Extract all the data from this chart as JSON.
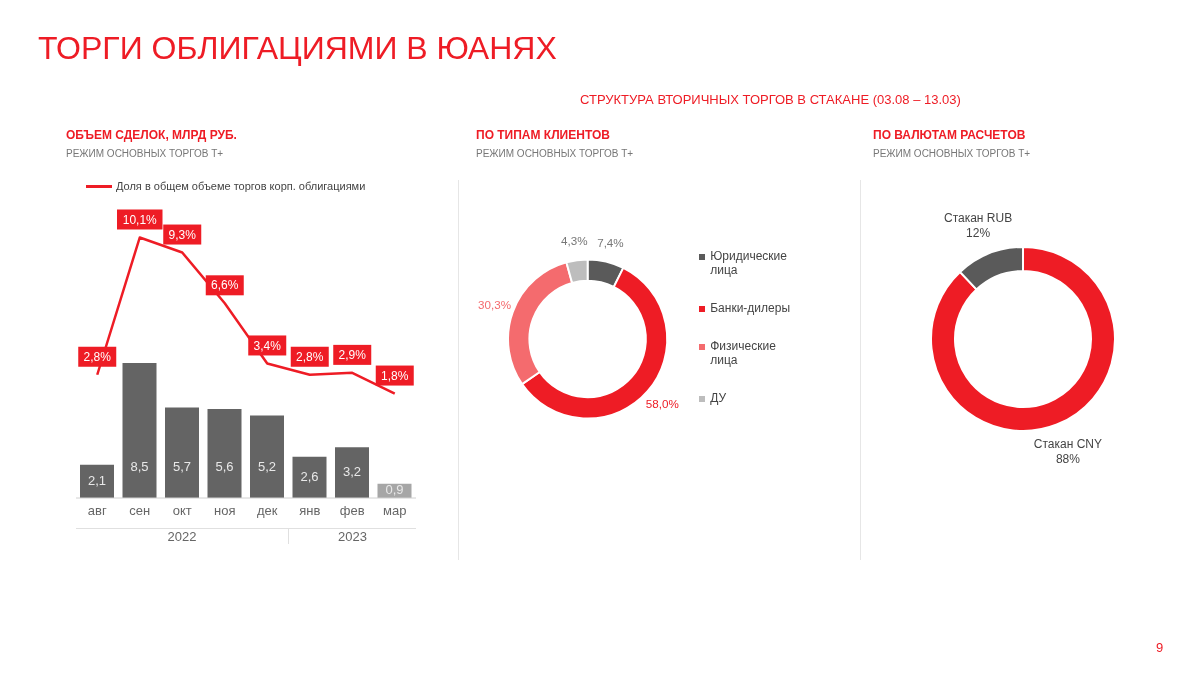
{
  "chart_data": [
    {
      "type": "bar",
      "title": "ОБЪЕМ СДЕЛОК, МЛРД РУБ.",
      "subtitle": "РЕЖИМ ОСНОВНЫХ ТОРГОВ Т+",
      "annotations": [
        "ТОРГИ ОБЛИГАЦИЯМИ В ЮАНЯХ",
        "2022",
        "2023"
      ],
      "categories": [
        "авг",
        "сен",
        "окт",
        "ноя",
        "дек",
        "янв",
        "фев",
        "мар"
      ],
      "tick_labels": "x",
      "legend": "top",
      "grid": false,
      "series": [
        {
          "type": "bar",
          "color": "#646464",
          "colors": [
            "#646464",
            "#646464",
            "#646464",
            "#646464",
            "#646464",
            "#646464",
            "#646464",
            "#a6a6a6"
          ],
          "values": [
            2.1,
            8.5,
            5.7,
            5.6,
            5.2,
            2.6,
            3.2,
            0.9
          ],
          "value_labels": [
            "2,1",
            "8,5",
            "5,7",
            "5,6",
            "5,2",
            "2,6",
            "3,2",
            "0,9"
          ]
        },
        {
          "type": "line",
          "name": "Доля в общем объеме торгов корп. облигациями",
          "axis": "y2",
          "color": "#ee1c25",
          "line_style": "solid",
          "values": [
            2.8,
            10.1,
            9.3,
            6.6,
            3.4,
            2.8,
            2.9,
            1.8
          ],
          "value_labels": [
            "2,8%",
            "10,1%",
            "9,3%",
            "6,6%",
            "3,4%",
            "2,8%",
            "2,9%",
            "1,8%"
          ]
        }
      ]
    },
    {
      "type": "donut",
      "title": "ПО ТИПАМ КЛИЕНТОВ",
      "subtitle": "РЕЖИМ ОСНОВНЫХ ТОРГОВ Т+",
      "annotations": [
        "СТРУКТУРА ВТОРИЧНЫХ ТОРГОВ В СТАКАНЕ (03.08 – 13.03)"
      ],
      "legend": "right",
      "categories": [
        "Юридические лица",
        "Банки-дилеры",
        "Физические лица",
        "ДУ"
      ],
      "values": [
        7.4,
        58.0,
        30.3,
        4.3
      ],
      "colors": [
        "#5a5a5a",
        "#ee1c25",
        "#f46b6e",
        "#bdbdbd"
      ],
      "value_labels": [
        "7,4%",
        "58,0%",
        "30,3%",
        "4,3%"
      ]
    },
    {
      "type": "donut",
      "title": "ПО ВАЛЮТАМ РАСЧЕТОВ",
      "subtitle": "РЕЖИМ ОСНОВНЫХ ТОРГОВ Т+",
      "annotations": [
        "9"
      ],
      "legend": false,
      "categories": [
        "Стакан CNY",
        "Стакан RUB"
      ],
      "values": [
        88,
        12
      ],
      "colors": [
        "#ee1c25",
        "#5a5a5a"
      ],
      "value_labels": [
        "88%",
        "12%"
      ]
    }
  ]
}
